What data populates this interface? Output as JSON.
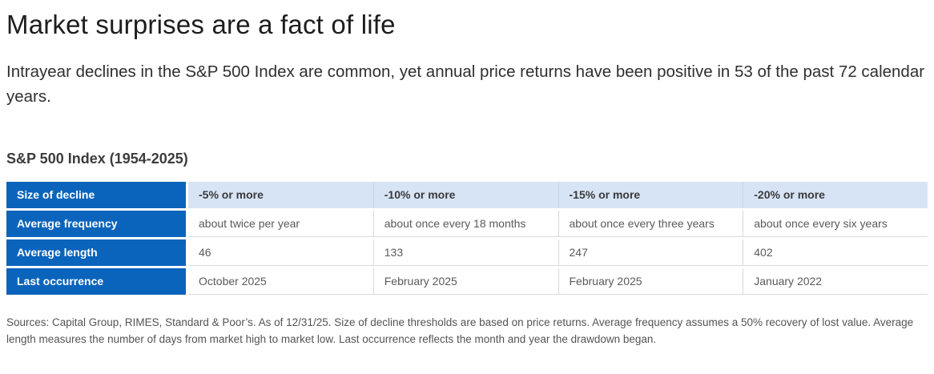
{
  "page": {
    "title": "Market surprises are a fact of life",
    "subtitle": "Intrayear declines in the S&P 500 Index are common, yet annual price returns have been positive in 53 of the past 72 calendar years.",
    "section_heading": "S&P 500 Index (1954-2025)",
    "footnote": "Sources: Capital Group, RIMES, Standard & Poor’s. As of 12/31/25. Size of decline thresholds are based on price returns. Average frequency assumes a 50% recovery of lost value. Average length measures the number of days from market high to market low. Last occurrence reflects the month and year the drawdown began."
  },
  "colors": {
    "brand_blue": "#0a64bb",
    "header_light_blue": "#d7e4f6",
    "row_divider_gray": "#d9d9d9",
    "header_divider_blue": "#c6d4e8"
  },
  "chart_data": {
    "type": "table",
    "title": "S&P 500 Index (1954-2025)",
    "corner_label": "Size of decline",
    "columns": [
      "-5% or more",
      "-10% or more",
      "-15% or more",
      "-20% or more"
    ],
    "rows": [
      {
        "label": "Average frequency",
        "values": [
          "about twice per year",
          "about once every 18 months",
          "about once every three years",
          "about once every six years"
        ]
      },
      {
        "label": "Average length",
        "values": [
          "46",
          "133",
          "247",
          "402"
        ]
      },
      {
        "label": "Last occurrence",
        "values": [
          "October 2025",
          "February 2025",
          "February 2025",
          "January 2022"
        ]
      }
    ]
  }
}
